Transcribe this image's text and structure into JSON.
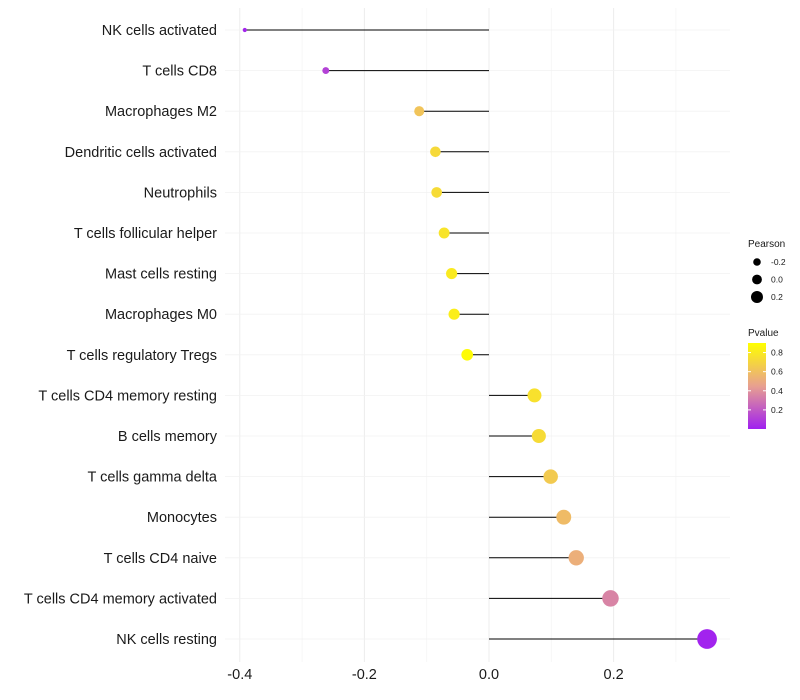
{
  "chart_data": {
    "type": "lollipop",
    "orientation": "horizontal",
    "xlabel": "",
    "ylabel": "",
    "xlim": [
      -0.4,
      0.35
    ],
    "xticks": [
      -0.4,
      -0.2,
      0.0,
      0.2
    ],
    "xtick_labels": [
      "-0.4",
      "-0.2",
      "0.0",
      "0.2"
    ],
    "categories": [
      "NK cells activated",
      "T cells CD8",
      "Macrophages M2",
      "Dendritic cells activated",
      "Neutrophils",
      "T cells follicular helper",
      "Mast cells resting",
      "Macrophages M0",
      "T cells regulatory  Tregs ",
      "T cells CD4 memory resting",
      "B cells memory",
      "T cells gamma delta",
      "Monocytes",
      "T cells CD4 naive",
      "T cells CD4 memory activated",
      "NK cells resting"
    ],
    "pearson": [
      -0.392,
      -0.262,
      -0.112,
      -0.086,
      -0.084,
      -0.072,
      -0.06,
      -0.056,
      -0.035,
      0.073,
      0.08,
      0.099,
      0.12,
      0.14,
      0.195,
      0.35
    ],
    "pvalue": [
      0.02,
      0.12,
      0.62,
      0.72,
      0.73,
      0.77,
      0.8,
      0.82,
      0.88,
      0.76,
      0.73,
      0.65,
      0.58,
      0.52,
      0.35,
      0.01
    ],
    "size_legend": {
      "title": "Pearson",
      "values": [
        -0.2,
        0.0,
        0.2
      ],
      "labels": [
        "-0.2",
        "0.0",
        "0.2"
      ]
    },
    "color_legend": {
      "title": "Pvalue",
      "range": [
        0.0,
        0.9
      ],
      "ticks": [
        0.8,
        0.6,
        0.4,
        0.2
      ],
      "tick_labels": [
        "0.8",
        "0.6",
        "0.4",
        "0.2"
      ],
      "low_color": "#a020f0",
      "mid_color": "#e8a090",
      "high_color": "#ffff00"
    },
    "grid": true,
    "legend_position": "right"
  }
}
